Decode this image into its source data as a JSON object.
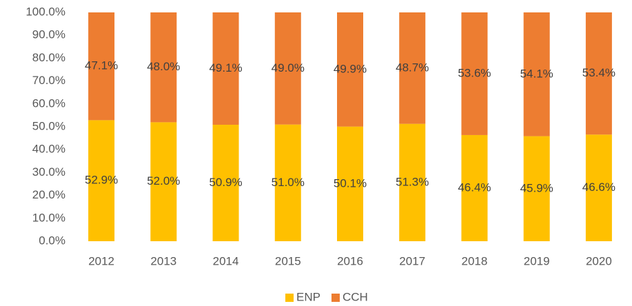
{
  "chart_data": {
    "type": "stacked_bar",
    "categories": [
      "2012",
      "2013",
      "2014",
      "2015",
      "2016",
      "2017",
      "2018",
      "2019",
      "2020"
    ],
    "series": [
      {
        "name": "ENP",
        "color": "#FFC000",
        "values": [
          52.9,
          52.0,
          50.9,
          51.0,
          50.1,
          51.3,
          46.4,
          45.9,
          46.6
        ],
        "value_labels": [
          "52.9%",
          "52.0%",
          "50.9%",
          "51.0%",
          "50.1%",
          "51.3%",
          "46.4%",
          "45.9%",
          "46.6%"
        ]
      },
      {
        "name": "CCH",
        "color": "#ED7D31",
        "values": [
          47.1,
          48.0,
          49.1,
          49.0,
          49.9,
          48.7,
          53.6,
          54.1,
          53.4
        ],
        "value_labels": [
          "47.1%",
          "48.0%",
          "49.1%",
          "49.0%",
          "49.9%",
          "48.7%",
          "53.6%",
          "54.1%",
          "53.4%"
        ]
      }
    ],
    "ylim": [
      0,
      100
    ],
    "yticks": [
      {
        "value": 0,
        "label": "0.0%"
      },
      {
        "value": 10,
        "label": "10.0%"
      },
      {
        "value": 20,
        "label": "20.0%"
      },
      {
        "value": 30,
        "label": "30.0%"
      },
      {
        "value": 40,
        "label": "40.0%"
      },
      {
        "value": 50,
        "label": "50.0%"
      },
      {
        "value": 60,
        "label": "60.0%"
      },
      {
        "value": 70,
        "label": "70.0%"
      },
      {
        "value": 80,
        "label": "80.0%"
      },
      {
        "value": 90,
        "label": "90.0%"
      },
      {
        "value": 100,
        "label": "100.0%"
      }
    ],
    "grid": false,
    "legend": "bottom"
  }
}
